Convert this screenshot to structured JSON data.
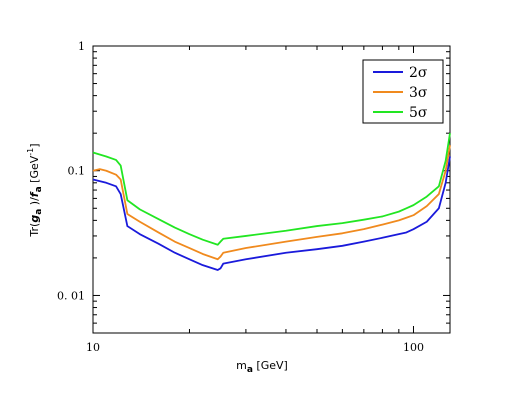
{
  "chart_data": {
    "type": "line",
    "xlabel": {
      "base": "m",
      "sub": "a",
      "unit": " [GeV]"
    },
    "ylabel": {
      "pre": "Tr(",
      "g": "g",
      "g_sub": "a",
      "mid": "   )/",
      "f": "f",
      "f_sub": "a",
      "unit": " [GeV",
      "exp": "-1",
      "close": "]"
    },
    "xscale": "log",
    "yscale": "log",
    "xlim": [
      10,
      130
    ],
    "ylim": [
      0.005,
      1
    ],
    "x_ticks": [
      {
        "value": 10,
        "label": "10"
      },
      {
        "value": 100,
        "label": "100"
      }
    ],
    "y_ticks": [
      {
        "value": 1,
        "label": "1"
      },
      {
        "value": 0.1,
        "label": "0.1"
      },
      {
        "value": 0.01,
        "label": "0. 01"
      }
    ],
    "grid": false,
    "legend_position": "top-right",
    "series": [
      {
        "name": "2σ",
        "color": "#1a1adb",
        "x": [
          10,
          11,
          11.8,
          12.2,
          12.8,
          14,
          16,
          18,
          20,
          22,
          24.5,
          25,
          25.5,
          30,
          40,
          50,
          60,
          70,
          80,
          90,
          95,
          100,
          110,
          120,
          126,
          130
        ],
        "y": [
          0.085,
          0.08,
          0.075,
          0.065,
          0.036,
          0.031,
          0.026,
          0.022,
          0.0195,
          0.0175,
          0.016,
          0.0165,
          0.018,
          0.0195,
          0.022,
          0.0235,
          0.025,
          0.027,
          0.029,
          0.031,
          0.032,
          0.034,
          0.039,
          0.05,
          0.08,
          0.13
        ]
      },
      {
        "name": "3σ",
        "color": "#f08a1e",
        "x": [
          10,
          10.5,
          11,
          11.8,
          12.2,
          12.8,
          14,
          16,
          18,
          20,
          22,
          24.5,
          25,
          25.5,
          30,
          40,
          50,
          60,
          70,
          80,
          90,
          95,
          100,
          110,
          120,
          126,
          130
        ],
        "y": [
          0.1,
          0.103,
          0.1,
          0.093,
          0.085,
          0.045,
          0.039,
          0.032,
          0.027,
          0.024,
          0.0215,
          0.0195,
          0.0205,
          0.022,
          0.024,
          0.027,
          0.0295,
          0.0315,
          0.034,
          0.037,
          0.04,
          0.042,
          0.044,
          0.052,
          0.065,
          0.1,
          0.16
        ]
      },
      {
        "name": "5σ",
        "color": "#22e622",
        "x": [
          10,
          11,
          11.8,
          12.2,
          12.8,
          14,
          16,
          18,
          20,
          22,
          24.5,
          25,
          25.5,
          30,
          40,
          50,
          60,
          70,
          80,
          90,
          95,
          100,
          110,
          120,
          126,
          130
        ],
        "y": [
          0.14,
          0.13,
          0.122,
          0.11,
          0.058,
          0.049,
          0.041,
          0.035,
          0.031,
          0.028,
          0.0255,
          0.027,
          0.0285,
          0.03,
          0.033,
          0.036,
          0.038,
          0.0405,
          0.043,
          0.047,
          0.05,
          0.053,
          0.062,
          0.075,
          0.12,
          0.2
        ]
      }
    ]
  }
}
